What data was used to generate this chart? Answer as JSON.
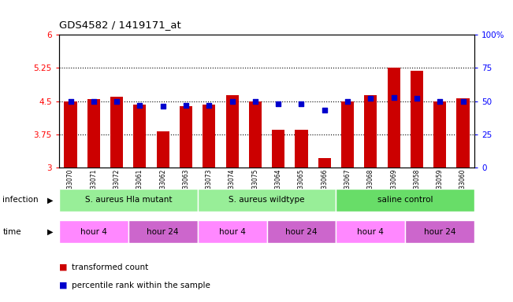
{
  "title": "GDS4582 / 1419171_at",
  "samples": [
    "GSM933070",
    "GSM933071",
    "GSM933072",
    "GSM933061",
    "GSM933062",
    "GSM933063",
    "GSM933073",
    "GSM933074",
    "GSM933075",
    "GSM933064",
    "GSM933065",
    "GSM933066",
    "GSM933067",
    "GSM933068",
    "GSM933069",
    "GSM933058",
    "GSM933059",
    "GSM933060"
  ],
  "bar_values": [
    4.5,
    4.55,
    4.6,
    4.43,
    3.82,
    4.38,
    4.43,
    4.63,
    4.5,
    3.85,
    3.86,
    3.22,
    4.5,
    4.63,
    5.25,
    5.18,
    4.5,
    4.57
  ],
  "dot_values_pct": [
    50,
    50,
    50,
    47,
    46,
    47,
    47,
    50,
    50,
    48,
    48,
    43,
    50,
    52,
    53,
    52,
    50,
    50
  ],
  "bar_color": "#cc0000",
  "dot_color": "#0000cc",
  "ylim": [
    3.0,
    6.0
  ],
  "yticks_left": [
    3.0,
    3.75,
    4.5,
    5.25,
    6.0
  ],
  "yticks_right_pct": [
    0,
    25,
    50,
    75,
    100
  ],
  "hlines": [
    3.75,
    4.5,
    5.25
  ],
  "infection_groups": [
    {
      "label": "S. aureus Hla mutant",
      "start": 0,
      "end": 6,
      "color": "#98ee98"
    },
    {
      "label": "S. aureus wildtype",
      "start": 6,
      "end": 12,
      "color": "#98ee98"
    },
    {
      "label": "saline control",
      "start": 12,
      "end": 18,
      "color": "#68dd68"
    }
  ],
  "time_groups": [
    {
      "label": "hour 4",
      "start": 0,
      "end": 3,
      "color": "#ff88ff"
    },
    {
      "label": "hour 24",
      "start": 3,
      "end": 6,
      "color": "#cc66cc"
    },
    {
      "label": "hour 4",
      "start": 6,
      "end": 9,
      "color": "#ff88ff"
    },
    {
      "label": "hour 24",
      "start": 9,
      "end": 12,
      "color": "#cc66cc"
    },
    {
      "label": "hour 4",
      "start": 12,
      "end": 15,
      "color": "#ff88ff"
    },
    {
      "label": "hour 24",
      "start": 15,
      "end": 18,
      "color": "#cc66cc"
    }
  ],
  "legend_items": [
    {
      "label": "transformed count",
      "color": "#cc0000"
    },
    {
      "label": "percentile rank within the sample",
      "color": "#0000cc"
    }
  ]
}
